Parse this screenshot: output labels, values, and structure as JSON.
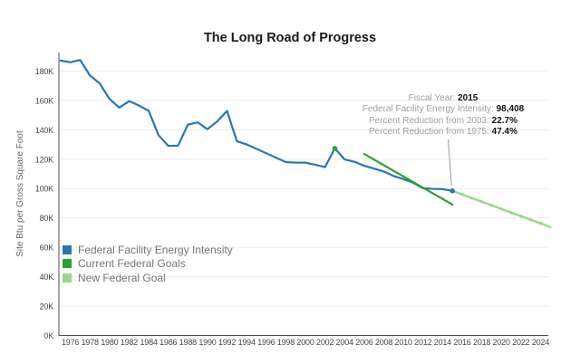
{
  "title": "The Long Road of Progress",
  "y_axis": {
    "label": "Site Btu per Gross Square Foot",
    "ticks": [
      {
        "value": 0,
        "label": "0K"
      },
      {
        "value": 20,
        "label": "20K"
      },
      {
        "value": 40,
        "label": "40K"
      },
      {
        "value": 60,
        "label": "60K"
      },
      {
        "value": 80,
        "label": "80K"
      },
      {
        "value": 100,
        "label": "100K"
      },
      {
        "value": 120,
        "label": "120K"
      },
      {
        "value": 140,
        "label": "140K"
      },
      {
        "value": 160,
        "label": "160K"
      },
      {
        "value": 180,
        "label": "180K"
      }
    ]
  },
  "x_axis": {
    "ticks": [
      1976,
      1978,
      1980,
      1982,
      1984,
      1986,
      1988,
      1990,
      1992,
      1994,
      1996,
      1998,
      2000,
      2002,
      2004,
      2006,
      2008,
      2010,
      2012,
      2014,
      2016,
      2018,
      2020,
      2022,
      2024
    ]
  },
  "annotation": {
    "lines": [
      {
        "label": "Fiscal Year: ",
        "value": "2015"
      },
      {
        "label": "Federal Facility Energy Intensity: ",
        "value": "98,408"
      },
      {
        "label": "Percent Reduction from 2003: ",
        "value": "22.7%"
      },
      {
        "label": "Percent Reduction from 1975: ",
        "value": "47.4%"
      }
    ]
  },
  "legend": [
    {
      "label": "Federal Facility Energy Intensity",
      "color": "#2878b0"
    },
    {
      "label": "Current Federal Goals",
      "color": "#2ca02c"
    },
    {
      "label": "New Federal Goal",
      "color": "#98d98a"
    }
  ],
  "chart_data": {
    "type": "line",
    "title": "The Long Road of Progress",
    "ylabel": "Site Btu per Gross Square Foot",
    "units": "thousand Btu per gross square foot",
    "ylim": [
      0,
      190
    ],
    "x_range": [
      1975,
      2025
    ],
    "grid": "horizontal-light",
    "legend_position": "lower-left-inside",
    "series": [
      {
        "name": "Federal Facility Energy Intensity",
        "color": "#2878b0",
        "x": [
          1975,
          1976,
          1977,
          1978,
          1979,
          1980,
          1981,
          1982,
          1983,
          1984,
          1985,
          1986,
          1987,
          1988,
          1989,
          1990,
          1991,
          1992,
          1993,
          1994,
          1995,
          1996,
          1997,
          1998,
          1999,
          2000,
          2001,
          2002,
          2003,
          2004,
          2005,
          2006,
          2007,
          2008,
          2009,
          2010,
          2011,
          2012,
          2013,
          2014,
          2015
        ],
        "values": [
          187.1,
          185.9,
          187.5,
          177.0,
          171.5,
          161.0,
          155.0,
          159.5,
          156.5,
          152.9,
          136.3,
          129.0,
          129.2,
          143.5,
          145.0,
          140.4,
          145.7,
          152.8,
          132.2,
          130.0,
          127.0,
          124.0,
          121.0,
          118.0,
          117.6,
          117.6,
          116.2,
          114.6,
          127.3,
          119.8,
          118.2,
          115.5,
          113.6,
          111.6,
          108.5,
          106.4,
          103.9,
          100.2,
          99.8,
          99.6,
          98.408
        ],
        "end_marker": true
      },
      {
        "name": "Current Federal Goals",
        "color": "#2ca02c",
        "x": [
          2006,
          2015
        ],
        "values": [
          123.5,
          89.1
        ],
        "baseline_point": {
          "x": 2003,
          "value": 127.3
        }
      },
      {
        "name": "New Federal Goal",
        "color": "#98d98a",
        "x": [
          2015,
          2025
        ],
        "values": [
          98.408,
          73.8
        ],
        "yearly_dots": [
          2016,
          2024
        ]
      }
    ]
  }
}
